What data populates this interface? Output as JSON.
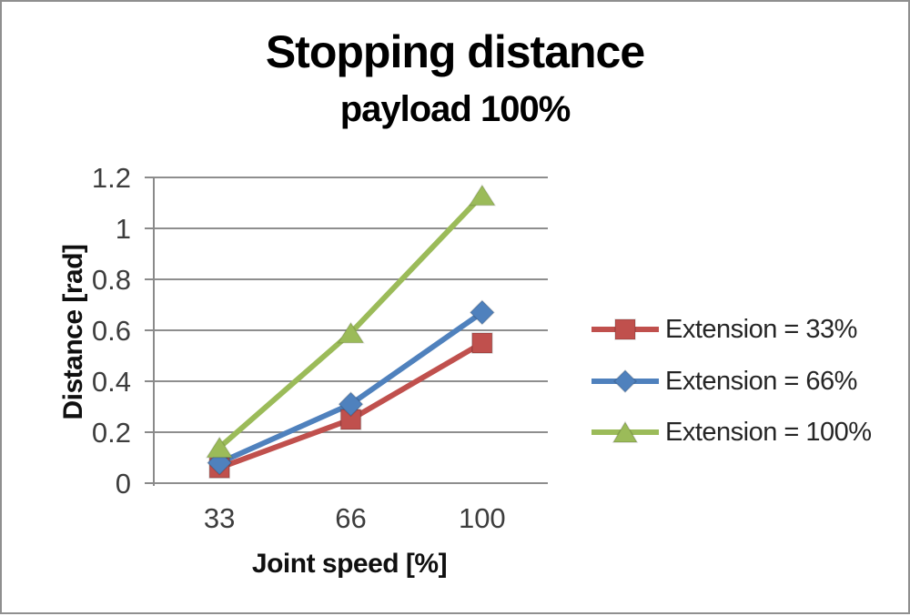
{
  "chart_data": {
    "type": "line",
    "title": "Stopping distance",
    "subtitle": "payload 100%",
    "xlabel": "Joint speed [%]",
    "ylabel": "Distance [rad]",
    "categories": [
      "33",
      "66",
      "100"
    ],
    "ylim": [
      0,
      1.2
    ],
    "yticks": [
      0,
      0.2,
      0.4,
      0.6,
      0.8,
      1,
      1.2
    ],
    "ytick_labels": [
      "0",
      "0.2",
      "0.4",
      "0.6",
      "0.8",
      "1",
      "1.2"
    ],
    "grid": "horizontal",
    "legend_position": "right",
    "series": [
      {
        "name": "Extension = 33%",
        "color": "#C0504D",
        "marker": "square",
        "values": [
          0.06,
          0.25,
          0.55
        ]
      },
      {
        "name": "Extension = 66%",
        "color": "#4F81BD",
        "marker": "diamond",
        "values": [
          0.08,
          0.31,
          0.67
        ]
      },
      {
        "name": "Extension = 100%",
        "color": "#9BBB59",
        "marker": "triangle",
        "values": [
          0.14,
          0.59,
          1.13
        ]
      }
    ]
  },
  "colors": {
    "gridline": "#8e8e8e",
    "axis": "#8a8a8a",
    "tick_label": "#3d3d3d",
    "legend_text": "#262626",
    "title": "#000000",
    "frame_border": "#8f8f8f",
    "background": "#ffffff"
  }
}
